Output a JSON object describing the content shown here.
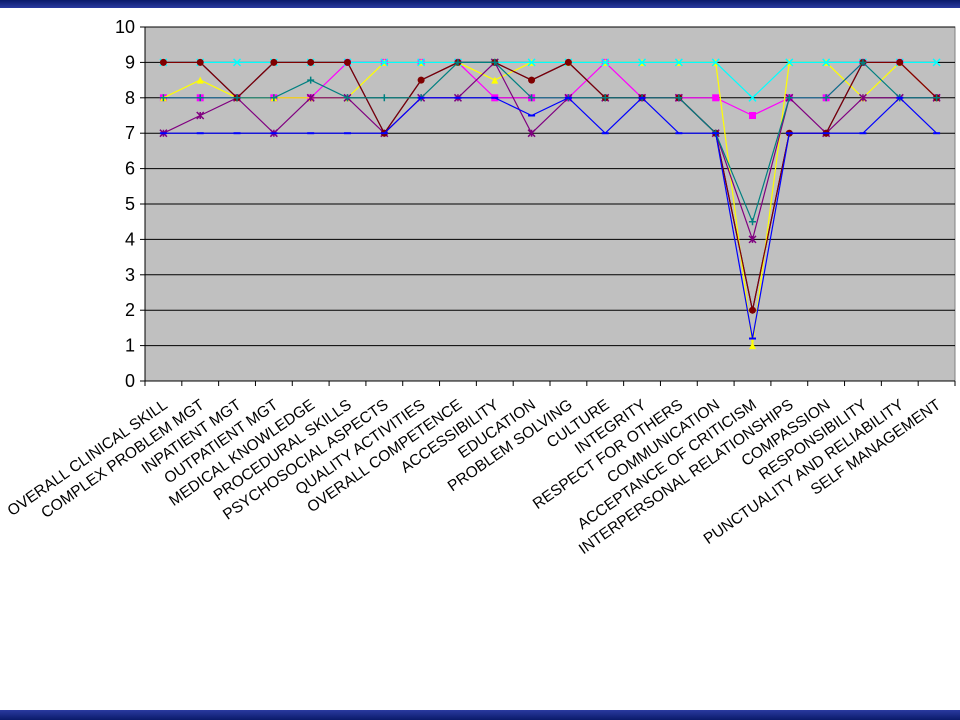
{
  "chart_data": {
    "type": "line",
    "title": "",
    "xlabel": "",
    "ylabel": "",
    "ylim": [
      0,
      10
    ],
    "yticks": [
      0,
      1,
      2,
      3,
      4,
      5,
      6,
      7,
      8,
      9,
      10
    ],
    "grid": true,
    "plot_background": "#c0c0c0",
    "categories": [
      "OVERALL CLINICAL SKILL",
      "COMPLEX PROBLEM MGT",
      "INPATIENT MGT",
      "OUTPATIENT MGT",
      "MEDICAL KNOWLEDGE",
      "PROCEDURAL SKILLS",
      "PSYCHOSOCIAL ASPECTS",
      "QUALITY ACTIVITIES",
      "OVERALL COMPETENCE",
      "ACCESSIBILITY",
      "EDUCATION",
      "PROBLEM SOLVING",
      "CULTURE",
      "INTEGRITY",
      "RESPECT FOR OTHERS",
      "COMMUNICATION",
      "ACCEPTANCE OF CRITICISM",
      "INTERPERSONAL RELATIONSHIPS",
      "COMPASSION",
      "RESPONSIBILITY",
      "PUNCTUALITY AND RELIABILITY",
      "SELF MANAGEMENT"
    ],
    "series": [
      {
        "color": "#00007f",
        "marker": "diamond",
        "values": [
          9,
          9,
          8,
          9,
          9,
          9,
          7,
          8.5,
          9,
          9,
          8.5,
          9,
          8,
          8,
          8,
          7,
          2,
          7,
          7,
          9,
          9,
          8
        ]
      },
      {
        "color": "#ff00ff",
        "marker": "square",
        "values": [
          8,
          8,
          8,
          8,
          8,
          9,
          9,
          9,
          9,
          8,
          8,
          8,
          9,
          8,
          8,
          8,
          7.5,
          8,
          8,
          9,
          9,
          8
        ]
      },
      {
        "color": "#ffff00",
        "marker": "triangle",
        "values": [
          8,
          8.5,
          8,
          8,
          8,
          8,
          9,
          9,
          9,
          8.5,
          9,
          9,
          9,
          9,
          9,
          9,
          1,
          9,
          9,
          8,
          9,
          8
        ]
      },
      {
        "color": "#00ffff",
        "marker": "x",
        "values": [
          9,
          9,
          9,
          9,
          9,
          9,
          9,
          9,
          9,
          9,
          9,
          9,
          9,
          9,
          9,
          9,
          8,
          9,
          9,
          9,
          9,
          9
        ]
      },
      {
        "color": "#800080",
        "marker": "star",
        "values": [
          7,
          7.5,
          8,
          7,
          8,
          8,
          7,
          8,
          8,
          9,
          7,
          8,
          8,
          8,
          8,
          7,
          4,
          8,
          7,
          8,
          8,
          8
        ]
      },
      {
        "color": "#800000",
        "marker": "circle",
        "values": [
          9,
          9,
          8,
          9,
          9,
          9,
          7,
          8.5,
          9,
          9,
          8.5,
          9,
          8,
          8,
          8,
          7,
          2,
          7,
          7,
          9,
          9,
          8
        ]
      },
      {
        "color": "#008080",
        "marker": "plus",
        "values": [
          8,
          8,
          8,
          8,
          8.5,
          8,
          8,
          8,
          9,
          9,
          8,
          8,
          8,
          8,
          8,
          7,
          4.5,
          8,
          8,
          9,
          8,
          8
        ]
      },
      {
        "color": "#0000ff",
        "marker": "dash",
        "values": [
          7,
          7,
          7,
          7,
          7,
          7,
          7,
          8,
          8,
          8,
          7.5,
          8,
          7,
          8,
          7,
          7,
          1.2,
          7,
          7,
          7,
          8,
          7
        ]
      }
    ]
  }
}
